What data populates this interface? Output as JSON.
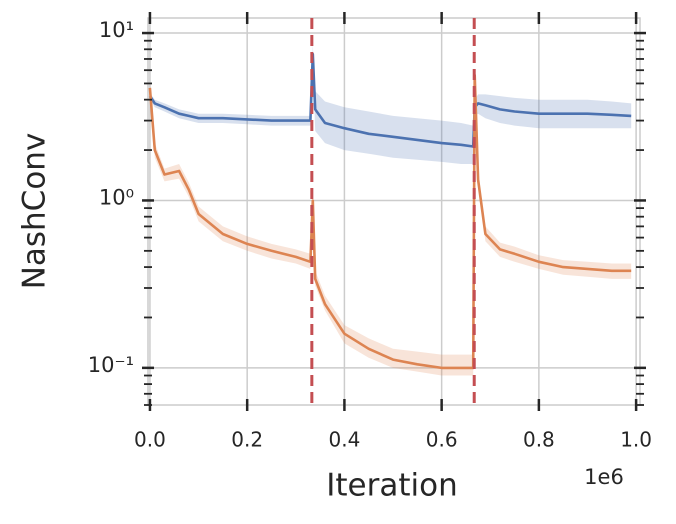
{
  "chart_data": {
    "type": "line",
    "xlabel": "Iteration",
    "ylabel": "NashConv",
    "x_offset_label": "1e6",
    "x": [
      0,
      0.01,
      0.03,
      0.06,
      0.08,
      0.1,
      0.15,
      0.2,
      0.25,
      0.3,
      0.33,
      0.335,
      0.34,
      0.36,
      0.4,
      0.45,
      0.5,
      0.55,
      0.6,
      0.64,
      0.665,
      0.668,
      0.675,
      0.69,
      0.72,
      0.75,
      0.8,
      0.85,
      0.9,
      0.95,
      0.99
    ],
    "series": [
      {
        "color": "#4c72b0",
        "values": [
          4.2,
          3.8,
          3.6,
          3.3,
          3.2,
          3.1,
          3.1,
          3.05,
          3.0,
          3.0,
          3.0,
          7.5,
          3.5,
          2.9,
          2.7,
          2.5,
          2.4,
          2.3,
          2.2,
          2.15,
          2.1,
          3.6,
          3.8,
          3.7,
          3.5,
          3.4,
          3.3,
          3.3,
          3.3,
          3.25,
          3.2
        ],
        "lower": [
          4.0,
          3.6,
          3.4,
          3.1,
          3.0,
          2.9,
          2.9,
          2.85,
          2.8,
          2.8,
          2.8,
          6.5,
          2.6,
          2.2,
          2.0,
          1.9,
          1.8,
          1.75,
          1.7,
          1.65,
          1.65,
          3.2,
          3.3,
          3.1,
          2.9,
          2.8,
          2.7,
          2.7,
          2.7,
          2.7,
          2.7
        ],
        "upper": [
          4.4,
          4.0,
          3.8,
          3.5,
          3.4,
          3.3,
          3.3,
          3.25,
          3.2,
          3.2,
          3.2,
          8.5,
          4.5,
          3.9,
          3.6,
          3.4,
          3.2,
          3.1,
          3.0,
          2.9,
          2.8,
          4.0,
          4.3,
          4.3,
          4.2,
          4.1,
          4.0,
          4.0,
          4.0,
          3.9,
          3.8
        ]
      },
      {
        "color": "#dd8452",
        "values": [
          4.7,
          2.0,
          1.43,
          1.5,
          1.16,
          0.83,
          0.63,
          0.55,
          0.5,
          0.46,
          0.43,
          1.0,
          0.34,
          0.24,
          0.16,
          0.13,
          0.112,
          0.105,
          0.1,
          0.1,
          0.1,
          5.6,
          1.33,
          0.63,
          0.51,
          0.48,
          0.43,
          0.4,
          0.39,
          0.38,
          0.38
        ],
        "lower": [
          4.4,
          1.8,
          1.3,
          1.35,
          1.05,
          0.75,
          0.57,
          0.5,
          0.45,
          0.42,
          0.39,
          0.9,
          0.31,
          0.22,
          0.14,
          0.115,
          0.1,
          0.095,
          0.09,
          0.09,
          0.09,
          5.0,
          1.2,
          0.57,
          0.46,
          0.43,
          0.39,
          0.36,
          0.35,
          0.34,
          0.34
        ],
        "upper": [
          5.0,
          2.2,
          1.55,
          1.65,
          1.28,
          0.92,
          0.7,
          0.61,
          0.55,
          0.51,
          0.48,
          1.1,
          0.38,
          0.27,
          0.18,
          0.15,
          0.13,
          0.125,
          0.12,
          0.12,
          0.12,
          6.2,
          1.45,
          0.7,
          0.56,
          0.53,
          0.47,
          0.44,
          0.43,
          0.42,
          0.42
        ]
      }
    ],
    "vlines": [
      0.333,
      0.667
    ],
    "vline_color": "#c44e52",
    "xlim": [
      -0.004,
      1.008
    ],
    "xticks": [
      {
        "value": 0,
        "label": "0.0"
      },
      {
        "value": 0.2,
        "label": "0.2"
      },
      {
        "value": 0.4,
        "label": "0.4"
      },
      {
        "value": 0.6,
        "label": "0.6"
      },
      {
        "value": 0.8,
        "label": "0.8"
      },
      {
        "value": 1,
        "label": "1.0"
      }
    ],
    "ylim": [
      0.06,
      12.3
    ],
    "ylog": true,
    "yticks": [
      {
        "value": 0.1,
        "label": "10⁻¹"
      },
      {
        "value": 1,
        "label": "10⁰"
      },
      {
        "value": 10,
        "label": "10¹"
      }
    ],
    "yminorticks": [
      0.06,
      0.07,
      0.08,
      0.09,
      0.2,
      0.3,
      0.4,
      0.5,
      0.6,
      0.7,
      0.8,
      0.9,
      2,
      3,
      4,
      5,
      6,
      7,
      8,
      9
    ],
    "grid": true
  }
}
